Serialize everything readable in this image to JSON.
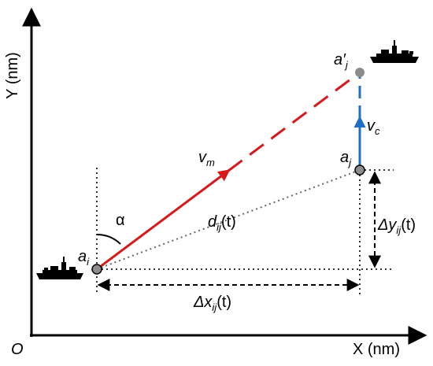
{
  "axes": {
    "x_label": "X (nm)",
    "y_label": "Y (nm)",
    "origin": "O"
  },
  "points": {
    "ai": {
      "base": "a",
      "sub": "i"
    },
    "aj": {
      "base": "a",
      "sub": "j"
    },
    "aj_prime": {
      "base": "a′",
      "sub": "j"
    }
  },
  "velocities": {
    "missile": {
      "base": "v",
      "sub": "m"
    },
    "target": {
      "base": "v",
      "sub": "c"
    }
  },
  "quantities": {
    "angle": "α",
    "distance": {
      "base": "d",
      "sub": "ij",
      "arg": "(t)"
    },
    "delta_x": {
      "prefix": "Δx",
      "sub": "ij",
      "arg": "(t)"
    },
    "delta_y": {
      "prefix": "Δy",
      "sub": "ij",
      "arg": "(t)"
    }
  },
  "colors": {
    "missile_path": "#d7191c",
    "target_path": "#1f6fc5",
    "node_fill": "#8c8c8c",
    "ink": "#000000"
  },
  "icons": [
    "warship-icon",
    "warship-icon"
  ]
}
